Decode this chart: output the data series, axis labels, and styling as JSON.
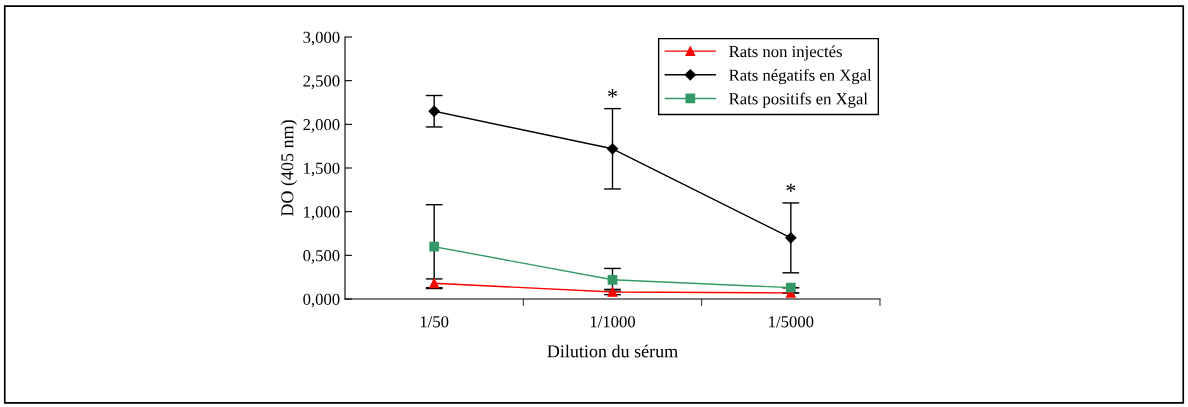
{
  "chart_data": {
    "type": "line",
    "xlabel": "Dilution du sérum",
    "ylabel": "DO (405 nm)",
    "categories": [
      "1/50",
      "1/1000",
      "1/5000"
    ],
    "ylim": [
      0,
      3
    ],
    "yticks": [
      {
        "value": 0,
        "label": "0,000"
      },
      {
        "value": 0.5,
        "label": "0,500"
      },
      {
        "value": 1,
        "label": "1,000"
      },
      {
        "value": 1.5,
        "label": "1,500"
      },
      {
        "value": 2,
        "label": "2,000"
      },
      {
        "value": 2.5,
        "label": "2,500"
      },
      {
        "value": 3,
        "label": "3,000"
      }
    ],
    "series": [
      {
        "name": "Rats non injectés",
        "color": "#ff0000",
        "marker": "triangle",
        "values": [
          0.18,
          0.08,
          0.07
        ],
        "errors": [
          0.05,
          0.03,
          null
        ]
      },
      {
        "name": "Rats négatifs en Xgal",
        "color": "#000000",
        "marker": "diamond",
        "values": [
          2.15,
          1.72,
          0.7
        ],
        "errors": [
          0.18,
          0.46,
          0.4
        ]
      },
      {
        "name": "Rats positifs en Xgal",
        "color": "#339966",
        "marker": "square",
        "values": [
          0.6,
          0.22,
          0.13
        ],
        "errors": [
          0.48,
          0.13,
          null
        ]
      }
    ],
    "annotations": [
      "*",
      "*"
    ],
    "legend": "top right",
    "grid": false
  }
}
